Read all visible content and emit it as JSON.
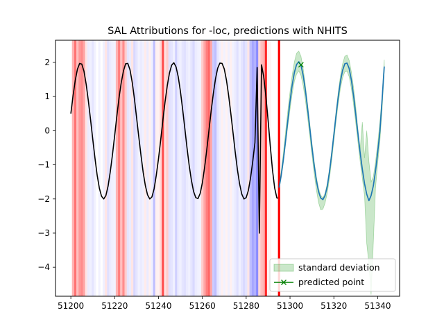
{
  "chart_data": {
    "type": "line",
    "title": "SAL Attributions for -loc, predictions with NHITS",
    "xlabel": "",
    "ylabel": "",
    "xlim": [
      51193,
      51350
    ],
    "ylim": [
      -4.85,
      2.65
    ],
    "xticks": [
      51200,
      51220,
      51240,
      51260,
      51280,
      51300,
      51320,
      51340
    ],
    "yticks": [
      2,
      1,
      0,
      -1,
      -2,
      -3,
      -4
    ],
    "ytick_labels": [
      "2",
      "1",
      "0",
      "−1",
      "−2",
      "−3",
      "−4"
    ],
    "grid": false,
    "legend_position": "lower-right",
    "history": {
      "color": "#000000",
      "x": [
        51200,
        51201,
        51202,
        51203,
        51204,
        51205,
        51206,
        51207,
        51208,
        51209,
        51210,
        51211,
        51212,
        51213,
        51214,
        51215,
        51216,
        51217,
        51218,
        51219,
        51220,
        51221,
        51222,
        51223,
        51224,
        51225,
        51226,
        51227,
        51228,
        51229,
        51230,
        51231,
        51232,
        51233,
        51234,
        51235,
        51236,
        51237,
        51238,
        51239,
        51240,
        51241,
        51242,
        51243,
        51244,
        51245,
        51246,
        51247,
        51248,
        51249,
        51250,
        51251,
        51252,
        51253,
        51254,
        51255,
        51256,
        51257,
        51258,
        51259,
        51260,
        51261,
        51262,
        51263,
        51264,
        51265,
        51266,
        51267,
        51268,
        51269,
        51270,
        51271,
        51272,
        51273,
        51274,
        51275,
        51276,
        51277,
        51278,
        51279,
        51280,
        51281,
        51282,
        51283,
        51284,
        51285,
        51286,
        51287,
        51288,
        51289,
        51290,
        51291,
        51292,
        51293,
        51294,
        51295
      ],
      "y": [
        0.5,
        1.02,
        1.47,
        1.8,
        1.97,
        1.95,
        1.74,
        1.36,
        0.87,
        0.32,
        -0.25,
        -0.8,
        -1.3,
        -1.68,
        -1.92,
        -2.0,
        -1.9,
        -1.62,
        -1.2,
        -0.7,
        -0.14,
        0.43,
        0.97,
        1.41,
        1.75,
        1.96,
        1.97,
        1.78,
        1.42,
        0.94,
        0.38,
        -0.18,
        -0.72,
        -1.22,
        -1.61,
        -1.88,
        -2.0,
        -1.94,
        -1.7,
        -1.3,
        -0.82,
        -0.27,
        0.31,
        0.85,
        1.32,
        1.69,
        1.92,
        1.99,
        1.87,
        1.58,
        1.15,
        0.63,
        0.07,
        -0.5,
        -1.02,
        -1.45,
        -1.78,
        -1.96,
        -1.99,
        -1.84,
        -1.53,
        -1.09,
        -0.57,
        0.0,
        0.57,
        1.08,
        1.52,
        1.83,
        1.98,
        1.97,
        1.81,
        1.48,
        1.03,
        0.5,
        -0.06,
        -0.63,
        -1.14,
        -1.56,
        -1.86,
        -2.0,
        -1.96,
        -1.75,
        -1.38,
        -0.9,
        -0.35,
        1.85,
        -3.0,
        1.93,
        1.58,
        1.0,
        0.3,
        -0.45,
        -1.15,
        -1.68,
        -1.97,
        -1.98
      ]
    },
    "predicted_mean": {
      "color": "#1f77b4",
      "x": [
        51295,
        51296,
        51297,
        51298,
        51299,
        51300,
        51301,
        51302,
        51303,
        51304,
        51305,
        51306,
        51307,
        51308,
        51309,
        51310,
        51311,
        51312,
        51313,
        51314,
        51315,
        51316,
        51317,
        51318,
        51319,
        51320,
        51321,
        51322,
        51323,
        51324,
        51325,
        51326,
        51327,
        51328,
        51329,
        51330,
        51331,
        51332,
        51333,
        51334,
        51335,
        51336,
        51337,
        51338,
        51339,
        51340,
        51341,
        51342,
        51343
      ],
      "y": [
        -1.67,
        -1.3,
        -0.83,
        -0.28,
        0.3,
        0.86,
        1.34,
        1.71,
        1.94,
        2.02,
        1.92,
        1.62,
        1.19,
        0.66,
        0.09,
        -0.48,
        -1.0,
        -1.45,
        -1.78,
        -1.97,
        -2.02,
        -1.9,
        -1.63,
        -1.21,
        -0.7,
        -0.13,
        0.45,
        0.99,
        1.44,
        1.77,
        1.96,
        1.98,
        1.82,
        1.48,
        1.02,
        0.47,
        -0.09,
        -0.64,
        -1.13,
        -1.55,
        -1.86,
        -2.05,
        -1.9,
        -1.62,
        -1.19,
        -0.64,
        -0.03,
        0.9,
        1.88
      ]
    },
    "std_band": {
      "name": "standard deviation",
      "color": "#2ca02c",
      "upper": [
        -1.6,
        -1.17,
        -0.63,
        -0.02,
        0.58,
        1.14,
        1.63,
        2.02,
        2.27,
        2.33,
        2.18,
        1.82,
        1.34,
        0.8,
        0.22,
        -0.36,
        -0.89,
        -1.34,
        -1.68,
        -1.89,
        -1.97,
        -1.83,
        -1.54,
        -1.11,
        -0.59,
        -0.02,
        0.57,
        1.13,
        1.61,
        1.96,
        2.18,
        2.22,
        2.06,
        1.72,
        1.26,
        0.7,
        0.04,
        -0.55,
        0.25,
        -0.8,
        0.0,
        -0.9,
        -1.5,
        -1.35,
        -0.92,
        -0.38,
        0.25,
        1.0,
        2.08
      ],
      "lower": [
        -1.72,
        -1.37,
        -0.92,
        -0.39,
        0.13,
        0.62,
        1.09,
        1.45,
        1.66,
        1.75,
        1.62,
        1.32,
        0.9,
        0.4,
        -0.14,
        -0.71,
        -1.24,
        -1.72,
        -2.1,
        -2.32,
        -2.3,
        -2.12,
        -1.82,
        -1.4,
        -0.89,
        -0.31,
        0.27,
        0.79,
        1.24,
        1.55,
        1.72,
        1.74,
        1.58,
        1.23,
        0.76,
        0.22,
        -0.34,
        -0.9,
        -1.4,
        -1.9,
        -3.3,
        -3.9,
        -4.8,
        -3.3,
        -1.7,
        -0.95,
        -0.32,
        0.6,
        1.75
      ]
    },
    "predicted_point": {
      "name": "predicted point",
      "color": "#008000",
      "x": 51305,
      "y": 1.93
    },
    "forecast_start": {
      "x": 51295,
      "color": "#ff0000"
    },
    "attributions": {
      "positive_color": "#ff0000",
      "negative_color": "#0000ff",
      "values": [
        [
          51201,
          0.3
        ],
        [
          51202,
          0.55
        ],
        [
          51203,
          0.25
        ],
        [
          51204,
          0.4
        ],
        [
          51205,
          0.45
        ],
        [
          51206,
          0.35
        ],
        [
          51207,
          0.1
        ],
        [
          51208,
          -0.08
        ],
        [
          51209,
          -0.06
        ],
        [
          51210,
          -0.1
        ],
        [
          51211,
          -0.05
        ],
        [
          51213,
          -0.05
        ],
        [
          51215,
          -0.06
        ],
        [
          51216,
          0.1
        ],
        [
          51217,
          -0.12
        ],
        [
          51218,
          -0.08
        ],
        [
          51219,
          -0.06
        ],
        [
          51220,
          -0.05
        ],
        [
          51221,
          0.3
        ],
        [
          51222,
          0.5
        ],
        [
          51223,
          0.25
        ],
        [
          51224,
          0.45
        ],
        [
          51225,
          0.2
        ],
        [
          51226,
          -0.1
        ],
        [
          51227,
          -0.08
        ],
        [
          51228,
          0.1
        ],
        [
          51229,
          -0.15
        ],
        [
          51230,
          -0.1
        ],
        [
          51231,
          -0.05
        ],
        [
          51232,
          -0.08
        ],
        [
          51233,
          -0.06
        ],
        [
          51234,
          0.08
        ],
        [
          51235,
          -0.08
        ],
        [
          51236,
          0.06
        ],
        [
          51237,
          -0.06
        ],
        [
          51238,
          -0.25
        ],
        [
          51239,
          0.06
        ],
        [
          51240,
          0.05
        ],
        [
          51241,
          0.15
        ],
        [
          51242,
          0.7
        ],
        [
          51243,
          0.12
        ],
        [
          51244,
          0.2
        ],
        [
          51245,
          -0.12
        ],
        [
          51246,
          -0.1
        ],
        [
          51247,
          -0.06
        ],
        [
          51248,
          -0.18
        ],
        [
          51249,
          -0.08
        ],
        [
          51250,
          -0.06
        ],
        [
          51251,
          -0.1
        ],
        [
          51252,
          -0.12
        ],
        [
          51253,
          -0.08
        ],
        [
          51254,
          -0.06
        ],
        [
          51255,
          -0.1
        ],
        [
          51256,
          -0.15
        ],
        [
          51257,
          -0.08
        ],
        [
          51258,
          -0.06
        ],
        [
          51259,
          -0.05
        ],
        [
          51260,
          0.2
        ],
        [
          51261,
          0.35
        ],
        [
          51262,
          0.5
        ],
        [
          51263,
          0.6
        ],
        [
          51264,
          0.35
        ],
        [
          51265,
          -0.2
        ],
        [
          51266,
          -0.25
        ],
        [
          51267,
          -0.1
        ],
        [
          51268,
          -0.06
        ],
        [
          51269,
          0.06
        ],
        [
          51270,
          -0.05
        ],
        [
          51271,
          0.05
        ],
        [
          51272,
          -0.06
        ],
        [
          51273,
          0.06
        ],
        [
          51274,
          -0.05
        ],
        [
          51275,
          -0.08
        ],
        [
          51276,
          -0.12
        ],
        [
          51277,
          -0.06
        ],
        [
          51278,
          -0.1
        ],
        [
          51279,
          -0.15
        ],
        [
          51280,
          -0.1
        ],
        [
          51281,
          0.1
        ],
        [
          51282,
          -0.25
        ],
        [
          51283,
          -0.35
        ],
        [
          51284,
          -0.3
        ],
        [
          51285,
          -0.45
        ],
        [
          51286,
          0.15
        ],
        [
          51287,
          0.25
        ],
        [
          51288,
          0.3
        ],
        [
          51289,
          0.85
        ],
        [
          51290,
          0.05
        ],
        [
          51291,
          0.04
        ]
      ]
    }
  }
}
